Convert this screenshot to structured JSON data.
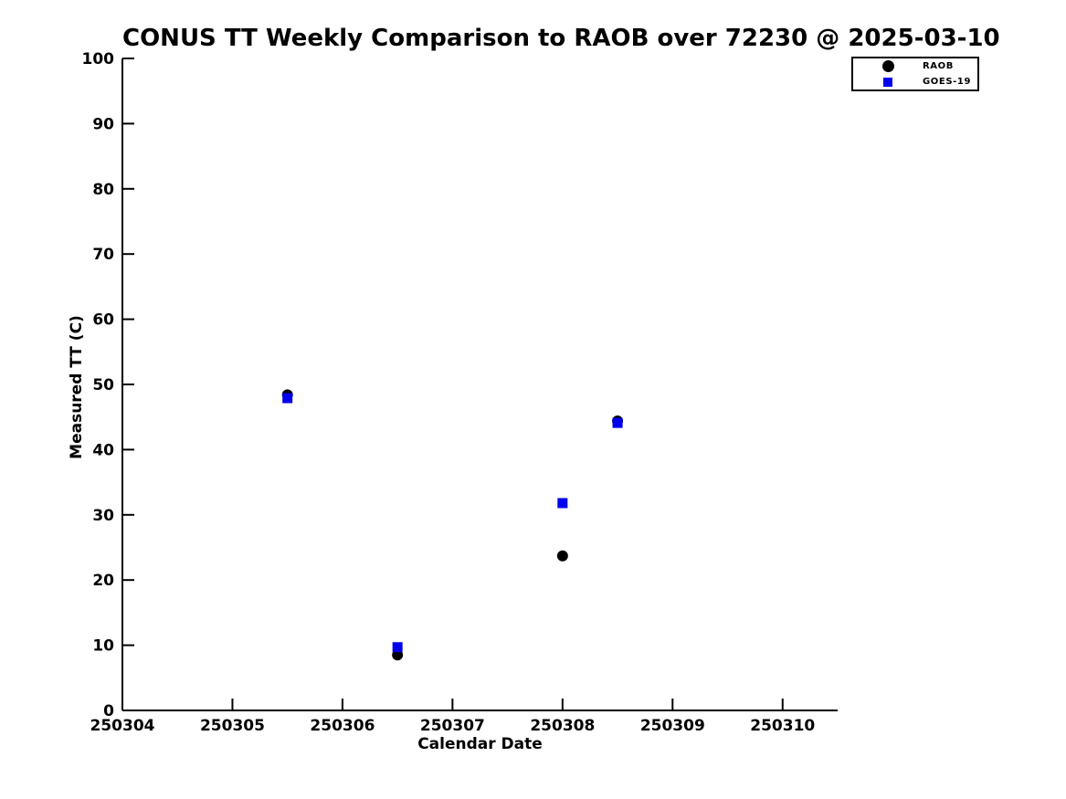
{
  "title": "CONUS TT Weekly Comparison to RAOB over 72230 @ 2025-03-10",
  "chart_data": {
    "type": "scatter",
    "title": "CONUS TT Weekly Comparison to RAOB over 72230 @ 2025-03-10",
    "xlabel": "Calendar Date",
    "ylabel": "Measured TT (C)",
    "xlim": [
      250304,
      250310.5
    ],
    "ylim": [
      0,
      100
    ],
    "x_ticks": [
      250304,
      250305,
      250306,
      250307,
      250308,
      250309,
      250310
    ],
    "y_ticks": [
      0,
      10,
      20,
      30,
      40,
      50,
      60,
      70,
      80,
      90,
      100
    ],
    "grid": false,
    "legend_position": "upper right",
    "axis_color": "#000000",
    "series": [
      {
        "name": "RAOB",
        "marker": "circle",
        "color": "#000000",
        "points": [
          [
            250305.5,
            48.4
          ],
          [
            250306.5,
            8.5
          ],
          [
            250308.0,
            23.7
          ],
          [
            250308.5,
            44.4
          ]
        ]
      },
      {
        "name": "GOES-19",
        "marker": "square",
        "color": "#0000ee",
        "points": [
          [
            250305.5,
            47.9
          ],
          [
            250306.5,
            9.7
          ],
          [
            250308.0,
            31.8
          ],
          [
            250308.5,
            44.1
          ]
        ]
      }
    ]
  },
  "legend": {
    "items": [
      {
        "label": "RAOB",
        "marker": "circle-icon",
        "color": "#000000"
      },
      {
        "label": "GOES-19",
        "marker": "square-icon",
        "color": "#0000ee"
      }
    ]
  }
}
